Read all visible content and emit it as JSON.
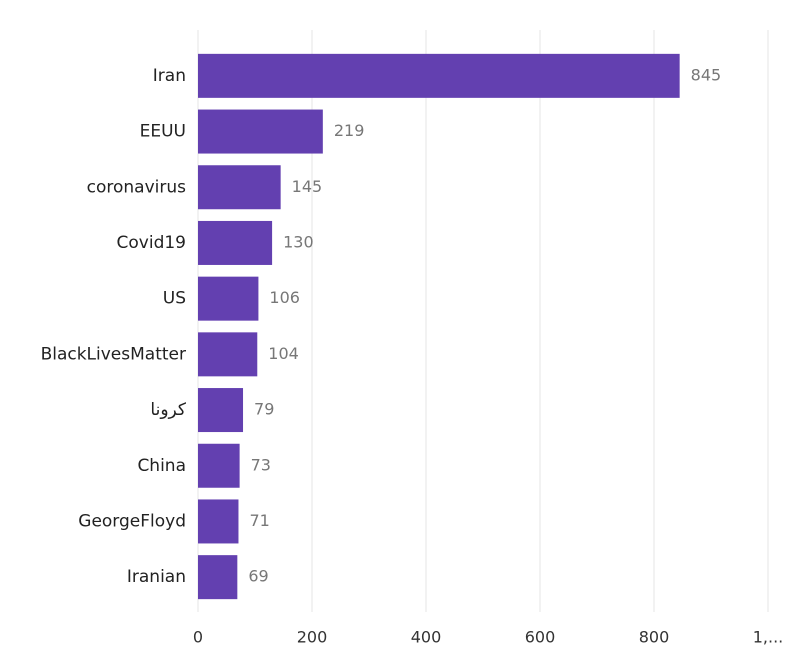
{
  "chart_data": {
    "type": "bar",
    "orientation": "horizontal",
    "categories": [
      "Iran",
      "EEUU",
      "coronavirus",
      "Covid19",
      "US",
      "BlackLivesMatter",
      "كرونا",
      "China",
      "GeorgeFloyd",
      "Iranian"
    ],
    "values": [
      845,
      219,
      145,
      130,
      106,
      104,
      79,
      73,
      71,
      69
    ],
    "color": "#6340b0",
    "xlim": [
      0,
      1000
    ],
    "xticks": [
      0,
      200,
      400,
      600,
      800,
      {
        "value": 1000,
        "label": "1,..."
      }
    ],
    "grid": true
  }
}
